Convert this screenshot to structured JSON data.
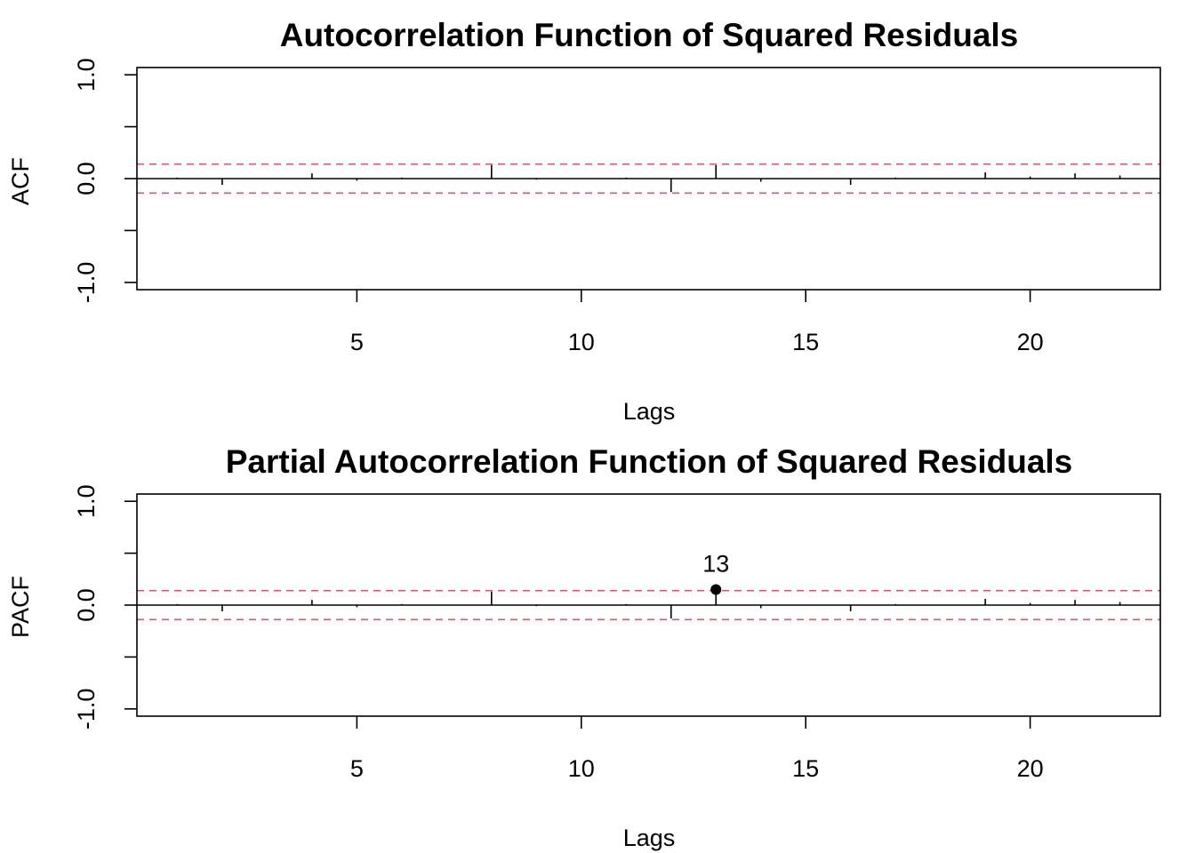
{
  "chart_data": [
    {
      "type": "bar",
      "title": "Autocorrelation Function of Squared Residuals",
      "xlabel": "Lags",
      "ylabel": "ACF",
      "xlim": [
        0.1,
        22.9
      ],
      "ylim": [
        -1.07,
        1.07
      ],
      "xticks": [
        5,
        10,
        15,
        20
      ],
      "yticks": [
        -1.0,
        -0.5,
        0.0,
        0.5,
        1.0
      ],
      "ytick_labels": [
        "-1.0",
        "",
        "0.0",
        "",
        "1.0"
      ],
      "ci": 0.14,
      "lags": [
        1,
        2,
        3,
        4,
        5,
        6,
        7,
        8,
        9,
        10,
        11,
        12,
        13,
        14,
        15,
        16,
        17,
        18,
        19,
        20,
        21,
        22
      ],
      "values": [
        0.01,
        -0.06,
        0.0,
        0.05,
        -0.02,
        0.01,
        0.0,
        0.13,
        -0.01,
        0.0,
        0.01,
        -0.13,
        0.13,
        -0.03,
        0.0,
        -0.06,
        0.01,
        0.0,
        0.06,
        0.02,
        0.05,
        0.03
      ],
      "highlight": []
    },
    {
      "type": "bar",
      "title": "Partial Autocorrelation Function of Squared Residuals",
      "xlabel": "Lags",
      "ylabel": "PACF",
      "xlim": [
        0.1,
        22.9
      ],
      "ylim": [
        -1.07,
        1.07
      ],
      "xticks": [
        5,
        10,
        15,
        20
      ],
      "yticks": [
        -1.0,
        -0.5,
        0.0,
        0.5,
        1.0
      ],
      "ytick_labels": [
        "-1.0",
        "",
        "0.0",
        "",
        "1.0"
      ],
      "ci": 0.14,
      "lags": [
        1,
        2,
        3,
        4,
        5,
        6,
        7,
        8,
        9,
        10,
        11,
        12,
        13,
        14,
        15,
        16,
        17,
        18,
        19,
        20,
        21,
        22
      ],
      "values": [
        0.01,
        -0.06,
        0.0,
        0.05,
        -0.02,
        0.01,
        0.0,
        0.13,
        -0.01,
        0.0,
        0.01,
        -0.13,
        0.15,
        -0.03,
        0.0,
        -0.06,
        0.01,
        0.0,
        0.06,
        0.02,
        0.05,
        0.03
      ],
      "highlight": [
        {
          "lag": 13,
          "value": 0.15,
          "label": "13"
        }
      ]
    }
  ]
}
